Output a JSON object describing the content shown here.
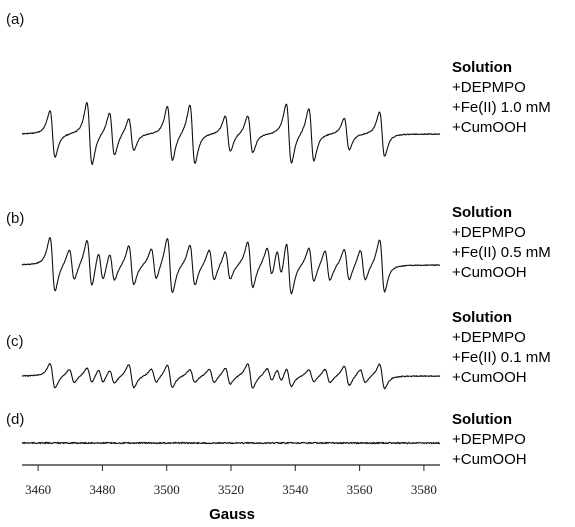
{
  "chart_data": {
    "type": "line",
    "xlabel": "Gauss",
    "ylabel": "",
    "xlim": [
      3455,
      3585
    ],
    "x_ticks": [
      3460,
      3480,
      3500,
      3520,
      3540,
      3560,
      3580
    ],
    "grid": false,
    "panels": [
      {
        "label": "(a)",
        "conditions": {
          "title": "Solution",
          "lines": [
            "+DEPMPO",
            "+Fe(II) 1.0 mM",
            "+CumOOH"
          ]
        },
        "line_count": 12,
        "relative_amplitude": 1.0
      },
      {
        "label": "(b)",
        "conditions": {
          "title": "Solution",
          "lines": [
            "+DEPMPO",
            "+Fe(II) 0.5 mM",
            "+CumOOH"
          ]
        },
        "line_count": 20,
        "relative_amplitude": 0.9
      },
      {
        "label": "(c)",
        "conditions": {
          "title": "Solution",
          "lines": [
            "+DEPMPO",
            "+Fe(II) 0.1 mM",
            "+CumOOH"
          ]
        },
        "line_count": 20,
        "relative_amplitude": 0.4
      },
      {
        "label": "(d)",
        "conditions": {
          "title": "Solution",
          "lines": [
            "+DEPMPO",
            "+CumOOH"
          ]
        },
        "line_count": 0,
        "relative_amplitude": 0.0
      }
    ]
  }
}
